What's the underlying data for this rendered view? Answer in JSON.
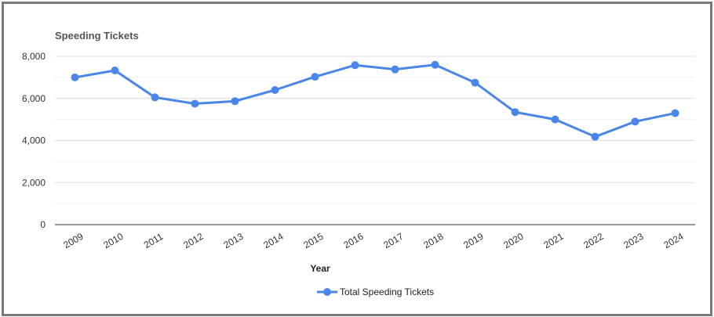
{
  "chart_data": {
    "type": "line",
    "title": "Speeding Tickets",
    "xlabel": "Year",
    "ylabel": "",
    "categories": [
      "2009",
      "2010",
      "2011",
      "2012",
      "2013",
      "2014",
      "2015",
      "2016",
      "2017",
      "2018",
      "2019",
      "2020",
      "2021",
      "2022",
      "2023",
      "2024"
    ],
    "series": [
      {
        "name": "Total Speeding Tickets",
        "values": [
          7000,
          7330,
          6050,
          5750,
          5870,
          6400,
          7030,
          7580,
          7380,
          7600,
          6750,
          5350,
          5000,
          4180,
          4900,
          5300
        ],
        "color": "#4a86e8"
      }
    ],
    "ylim": [
      0,
      8000
    ],
    "yticks": [
      "0",
      "2,000",
      "4,000",
      "6,000",
      "8,000"
    ],
    "ytick_values": [
      0,
      2000,
      4000,
      6000,
      8000
    ],
    "grid": true,
    "legend": "bottom"
  }
}
